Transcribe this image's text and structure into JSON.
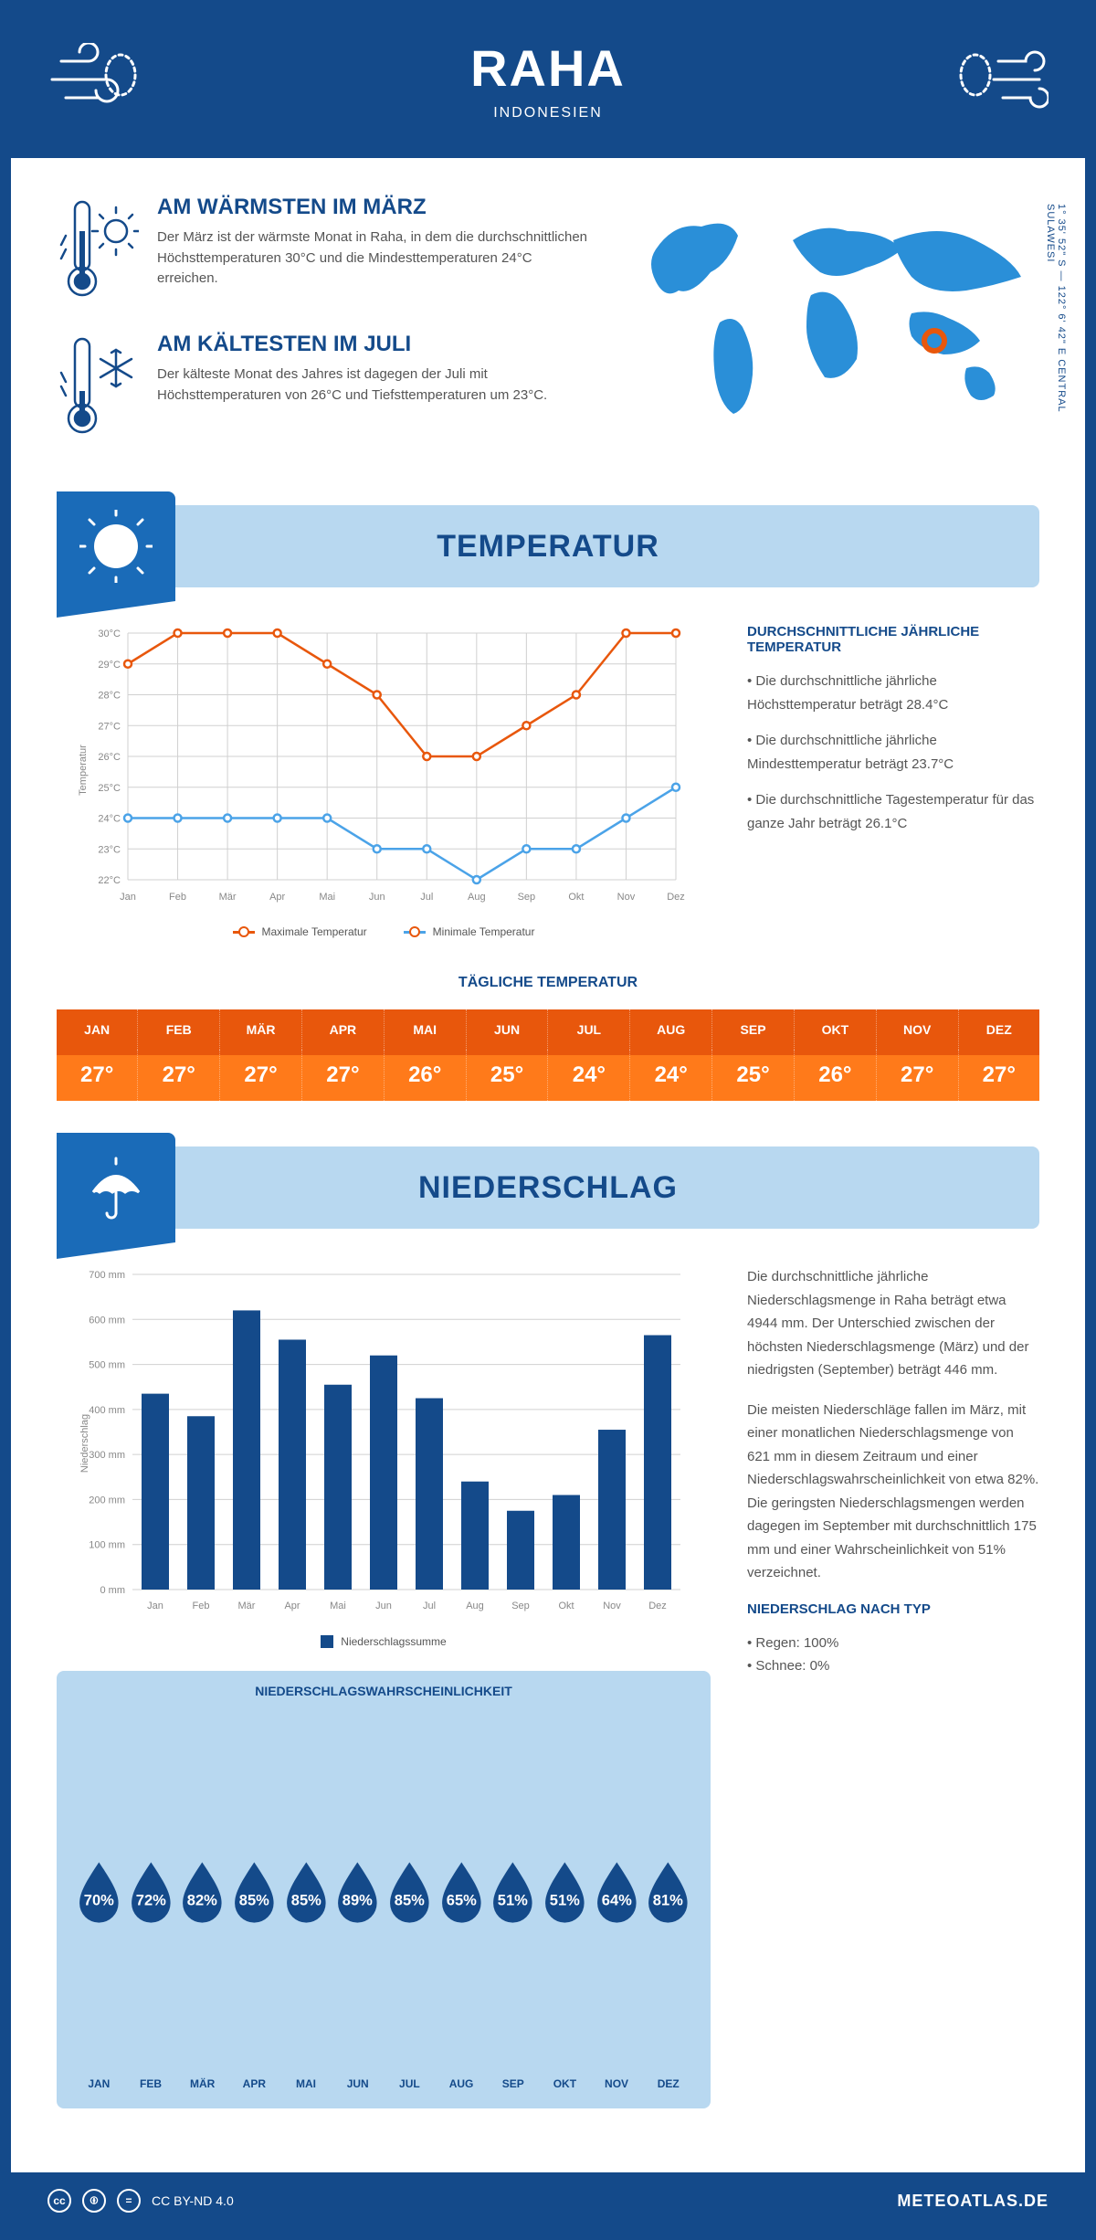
{
  "header": {
    "title": "RAHA",
    "subtitle": "INDONESIEN"
  },
  "coords": "1° 35' 52\" S — 122° 6' 42\" E   CENTRAL SULAWESI",
  "facts": {
    "warm": {
      "title": "AM WÄRMSTEN IM MÄRZ",
      "text": "Der März ist der wärmste Monat in Raha, in dem die durchschnittlichen Höchsttemperaturen 30°C und die Mindesttemperaturen 24°C erreichen."
    },
    "cold": {
      "title": "AM KÄLTESTEN IM JULI",
      "text": "Der kälteste Monat des Jahres ist dagegen der Juli mit Höchsttemperaturen von 26°C und Tiefsttemperaturen um 23°C."
    }
  },
  "sections": {
    "temp": "TEMPERATUR",
    "precip": "NIEDERSCHLAG"
  },
  "months_short": [
    "Jan",
    "Feb",
    "Mär",
    "Apr",
    "Mai",
    "Jun",
    "Jul",
    "Aug",
    "Sep",
    "Okt",
    "Nov",
    "Dez"
  ],
  "months_upper": [
    "JAN",
    "FEB",
    "MÄR",
    "APR",
    "MAI",
    "JUN",
    "JUL",
    "AUG",
    "SEP",
    "OKT",
    "NOV",
    "DEZ"
  ],
  "temp_chart": {
    "y_label": "Temperatur",
    "y_min": 22,
    "y_max": 30,
    "y_ticks": [
      "22°C",
      "23°C",
      "24°C",
      "25°C",
      "26°C",
      "27°C",
      "28°C",
      "29°C",
      "30°C"
    ],
    "max_series": [
      29,
      30,
      30,
      30,
      29,
      28,
      26,
      26,
      27,
      28,
      30,
      30
    ],
    "min_series": [
      24,
      24,
      24,
      24,
      24,
      23,
      23,
      22,
      23,
      23,
      24,
      25
    ],
    "max_color": "#e8570c",
    "min_color": "#4ba3e8",
    "grid_color": "#d0d0d0",
    "legend_max": "Maximale Temperatur",
    "legend_min": "Minimale Temperatur"
  },
  "temp_info": {
    "title": "DURCHSCHNITTLICHE JÄHRLICHE TEMPERATUR",
    "bullets": [
      "• Die durchschnittliche jährliche Höchsttemperatur beträgt 28.4°C",
      "• Die durchschnittliche jährliche Mindesttemperatur beträgt 23.7°C",
      "• Die durchschnittliche Tagestemperatur für das ganze Jahr beträgt 26.1°C"
    ]
  },
  "daily": {
    "title": "TÄGLICHE TEMPERATUR",
    "values": [
      "27°",
      "27°",
      "27°",
      "27°",
      "26°",
      "25°",
      "24°",
      "24°",
      "25°",
      "26°",
      "27°",
      "27°"
    ]
  },
  "precip_chart": {
    "y_label": "Niederschlag",
    "y_max": 700,
    "y_step": 100,
    "values": [
      435,
      385,
      620,
      555,
      455,
      520,
      425,
      240,
      175,
      210,
      355,
      565
    ],
    "bar_color": "#144a8a",
    "grid_color": "#d0d0d0",
    "legend": "Niederschlagssumme"
  },
  "precip_info": {
    "p1": "Die durchschnittliche jährliche Niederschlagsmenge in Raha beträgt etwa 4944 mm. Der Unterschied zwischen der höchsten Niederschlagsmenge (März) und der niedrigsten (September) beträgt 446 mm.",
    "p2": "Die meisten Niederschläge fallen im März, mit einer monatlichen Niederschlagsmenge von 621 mm in diesem Zeitraum und einer Niederschlagswahrscheinlichkeit von etwa 82%. Die geringsten Niederschlagsmengen werden dagegen im September mit durchschnittlich 175 mm und einer Wahrscheinlichkeit von 51% verzeichnet.",
    "type_title": "NIEDERSCHLAG NACH TYP",
    "type_rain": "• Regen: 100%",
    "type_snow": "• Schnee: 0%"
  },
  "prob": {
    "title": "NIEDERSCHLAGSWAHRSCHEINLICHKEIT",
    "values": [
      "70%",
      "72%",
      "82%",
      "85%",
      "85%",
      "89%",
      "85%",
      "65%",
      "51%",
      "51%",
      "64%",
      "81%"
    ]
  },
  "footer": {
    "license": "CC BY-ND 4.0",
    "site": "METEOATLAS.DE"
  },
  "colors": {
    "primary": "#144a8a",
    "light": "#b8d8f0",
    "mid": "#1a6bb8"
  }
}
